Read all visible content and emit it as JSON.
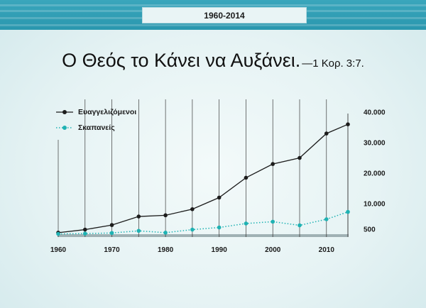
{
  "header": {
    "year_range": "1960-2014"
  },
  "title": {
    "main": "Ο Θεός το Κάνει να Αυξάνει.",
    "reference": "—1 Κορ. 3:7."
  },
  "colors": {
    "band": "#2f9db4",
    "series_dark": "#1c1c1c",
    "series_teal": "#1fb2b3"
  },
  "chart_data": {
    "type": "line",
    "x": [
      1960,
      1965,
      1970,
      1975,
      1980,
      1985,
      1990,
      1995,
      2000,
      2005,
      2010,
      2014
    ],
    "series": [
      {
        "name": "Ευαγγελιζόμενοι",
        "values": [
          500,
          1500,
          3000,
          5800,
          6200,
          8200,
          12000,
          18500,
          23000,
          25000,
          33000,
          36000
        ],
        "style": "solid"
      },
      {
        "name": "Σκαπανείς",
        "values": [
          100,
          200,
          400,
          1100,
          500,
          1500,
          2200,
          3500,
          4100,
          2900,
          4900,
          7300
        ],
        "style": "dotted"
      }
    ],
    "x_ticks": [
      "1960",
      "1970",
      "1980",
      "1990",
      "2000",
      "2010"
    ],
    "y_ticks": [
      {
        "value": 500,
        "label": "500"
      },
      {
        "value": 10000,
        "label": "10.000"
      },
      {
        "value": 20000,
        "label": "20.000"
      },
      {
        "value": 30000,
        "label": "30.000"
      },
      {
        "value": 40000,
        "label": "40.000"
      }
    ],
    "xlim": [
      1960,
      2014
    ],
    "ylim": [
      0,
      40000
    ],
    "y_axis_side": "right",
    "legend_position": "top-left",
    "grid": "vertical"
  }
}
